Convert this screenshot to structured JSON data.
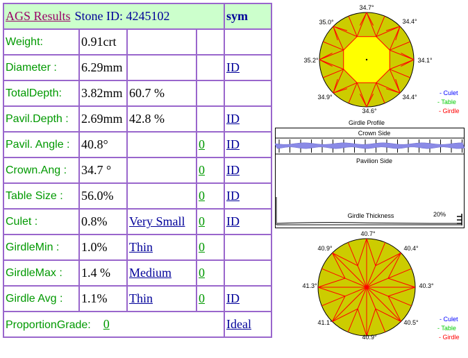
{
  "header": {
    "title": "AGS  Results",
    "stone_id": "Stone ID:  4245102",
    "sym": "sym"
  },
  "rows": [
    {
      "label": "Weight:",
      "v1": "0.91crt",
      "v2": "",
      "v3": "",
      "v4": ""
    },
    {
      "label": "Diameter :",
      "v1": "6.29mm",
      "v2": "",
      "v3": "",
      "v4": "ID"
    },
    {
      "label": "TotalDepth:",
      "v1": "3.82mm",
      "v2": "60.7 %",
      "v3": "",
      "v4": ""
    },
    {
      "label": "Pavil.Depth :",
      "v1": "2.69mm",
      "v2": "42.8 %",
      "v3": "",
      "v4": "ID"
    },
    {
      "label": "Pavil. Angle :",
      "v1": "40.8°",
      "v2": "",
      "v3": "0",
      "v4": "ID"
    },
    {
      "label": "Crown.Ang :",
      "v1": "34.7 °",
      "v2": "",
      "v3": "0",
      "v4": "ID"
    },
    {
      "label": "Table Size :",
      "v1": "56.0%",
      "v2": "",
      "v3": "0",
      "v4": "ID"
    },
    {
      "label": "Culet :",
      "v1": "0.8%",
      "v2": "Very Small",
      "v3": "0",
      "v4": "ID"
    },
    {
      "label": "GirdleMin :",
      "v1": "1.0%",
      "v2": "Thin",
      "v3": "0",
      "v4": ""
    },
    {
      "label": "GirdleMax :",
      "v1": "1.4 %",
      "v2": "Medium",
      "v3": "0",
      "v4": ""
    },
    {
      "label": "Girdle Avg :",
      "v1": "1.1%",
      "v2": "Thin",
      "v3": "0",
      "v4": "ID"
    }
  ],
  "footer": {
    "label": "ProportionGrade:",
    "value": "0",
    "grade": "Ideal"
  },
  "crown_diagram": {
    "angles": [
      "34.7°",
      "34.4°",
      "34.1°",
      "34.4°",
      "34.6°",
      "34.9°",
      "35.2°",
      "35.0°"
    ],
    "caption": "Girdle Profile",
    "legend": [
      "- Culet",
      "- Table",
      "- Girdle"
    ]
  },
  "profile_panel": {
    "crown_side": "Crown Side",
    "pavilion_side": "Pavilion Side",
    "girdle_thickness": "Girdle Thickness",
    "percent": "20%"
  },
  "pavilion_diagram": {
    "angles": [
      "40.7°",
      "40.4°",
      "40.3°",
      "40.5°",
      "40.9°",
      "41.1°",
      "41.3°",
      "40.9°"
    ],
    "legend": [
      "- Culet",
      "- Table",
      "- Girdle"
    ]
  },
  "colors": {
    "border": "#9966cc",
    "label_green": "#009900",
    "link_blue": "#000099",
    "gem_fill": "#cccc00",
    "table_fill": "#ffff00",
    "facet_line": "#ff0000",
    "legend_culet": "#0000ff",
    "legend_table": "#00cc00",
    "legend_girdle": "#ff0000"
  }
}
